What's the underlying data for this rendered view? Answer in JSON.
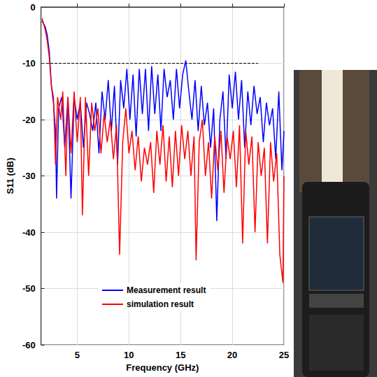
{
  "chart_data": {
    "type": "line",
    "x_label": "Frequency (GHz)",
    "y_label": "S11 (dB)",
    "xlim": [
      1.5,
      25
    ],
    "xticks": [
      5,
      10,
      15,
      20,
      25
    ],
    "ylim": [
      -60,
      0
    ],
    "yticks": [
      -60,
      -50,
      -40,
      -30,
      -20,
      -10,
      0
    ],
    "grid": true,
    "legend": "bottom-center",
    "series": [
      {
        "name": "Measurement result",
        "color": "#0000ff",
        "line_style": "solid",
        "x": [
          1.6,
          1.9,
          2.1,
          2.3,
          2.5,
          2.7,
          2.9,
          3.0,
          3.2,
          3.5,
          3.8,
          4.1,
          4.4,
          4.7,
          5.0,
          5.3,
          5.6,
          5.9,
          6.2,
          6.5,
          6.8,
          7.1,
          7.4,
          7.7,
          8.0,
          8.3,
          8.6,
          8.9,
          9.2,
          9.5,
          9.8,
          10.1,
          10.4,
          10.7,
          11.0,
          11.3,
          11.6,
          11.9,
          12.2,
          12.5,
          12.8,
          13.1,
          13.4,
          13.7,
          14.0,
          14.3,
          14.6,
          14.9,
          15.2,
          15.5,
          15.8,
          16.1,
          16.4,
          16.7,
          17.0,
          17.3,
          17.6,
          17.9,
          18.2,
          18.5,
          18.8,
          19.1,
          19.4,
          19.7,
          20.0,
          20.3,
          20.6,
          20.9,
          21.2,
          21.5,
          21.8,
          22.1,
          22.4,
          22.7,
          23.0,
          23.3,
          23.6,
          23.9,
          24.2,
          24.5,
          24.8,
          25.0
        ],
        "values": [
          -2.5,
          -3.5,
          -5,
          -8,
          -14,
          -17,
          -22,
          -34,
          -18,
          -16,
          -25,
          -16,
          -34,
          -16,
          -20,
          -17,
          -25,
          -17,
          -19,
          -22,
          -17,
          -26,
          -15,
          -20,
          -13,
          -22,
          -14,
          -28,
          -13,
          -18,
          -11,
          -20,
          -12,
          -23,
          -11,
          -19,
          -11,
          -22,
          -10.5,
          -19,
          -12,
          -22,
          -11,
          -16,
          -13,
          -20,
          -11,
          -18,
          -12,
          -9.5,
          -15,
          -20,
          -13,
          -22,
          -14,
          -21,
          -17,
          -25,
          -18,
          -38,
          -20,
          -15,
          -27,
          -12,
          -18,
          -11.5,
          -20,
          -13,
          -25,
          -15,
          -21,
          -14,
          -19,
          -16,
          -24,
          -17,
          -21,
          -18,
          -27,
          -15,
          -29,
          -22
        ]
      },
      {
        "name": "simulation result",
        "color": "#ff0000",
        "line_style": "solid",
        "x": [
          1.6,
          1.9,
          2.1,
          2.3,
          2.5,
          2.7,
          2.9,
          3.1,
          3.4,
          3.6,
          3.9,
          4.1,
          4.4,
          4.7,
          5.0,
          5.3,
          5.5,
          5.8,
          6.1,
          6.4,
          6.7,
          7.0,
          7.3,
          7.6,
          7.9,
          8.2,
          8.5,
          8.8,
          9.1,
          9.4,
          9.7,
          10.0,
          10.3,
          10.6,
          10.9,
          11.2,
          11.5,
          11.8,
          12.1,
          12.4,
          12.7,
          13.0,
          13.3,
          13.6,
          13.9,
          14.2,
          14.5,
          14.8,
          15.1,
          15.4,
          15.7,
          16.0,
          16.3,
          16.5,
          16.8,
          17.1,
          17.4,
          17.7,
          18.0,
          18.3,
          18.6,
          18.9,
          19.2,
          19.5,
          19.8,
          20.1,
          20.4,
          20.7,
          21.0,
          21.3,
          21.6,
          21.9,
          22.2,
          22.5,
          22.8,
          23.1,
          23.4,
          23.7,
          24.0,
          24.3,
          24.6,
          24.9,
          25.0
        ],
        "values": [
          -2,
          -4,
          -6,
          -9,
          -14,
          -16,
          -28,
          -16,
          -20,
          -15,
          -30,
          -16,
          -26,
          -15,
          -24,
          -16,
          -37,
          -16,
          -30,
          -17,
          -22,
          -18,
          -26,
          -19,
          -24,
          -20,
          -27,
          -21,
          -44,
          -24,
          -18,
          -26,
          -22,
          -29,
          -23,
          -31,
          -25,
          -28,
          -24,
          -33,
          -22,
          -28,
          -21,
          -31,
          -23,
          -32,
          -22,
          -30,
          -21,
          -27,
          -22,
          -30,
          -23,
          -45,
          -24,
          -20,
          -30,
          -24,
          -34,
          -23,
          -29,
          -22,
          -33,
          -23,
          -27,
          -22,
          -32,
          -21,
          -42,
          -22,
          -28,
          -23,
          -40,
          -24,
          -30,
          -25,
          -42,
          -24,
          -31,
          -26,
          -44,
          -49,
          -30
        ]
      },
      {
        "color": "#000000",
        "line_style": "dashed",
        "x": [
          2,
          22.5
        ],
        "values": [
          -10,
          -10
        ]
      }
    ]
  }
}
